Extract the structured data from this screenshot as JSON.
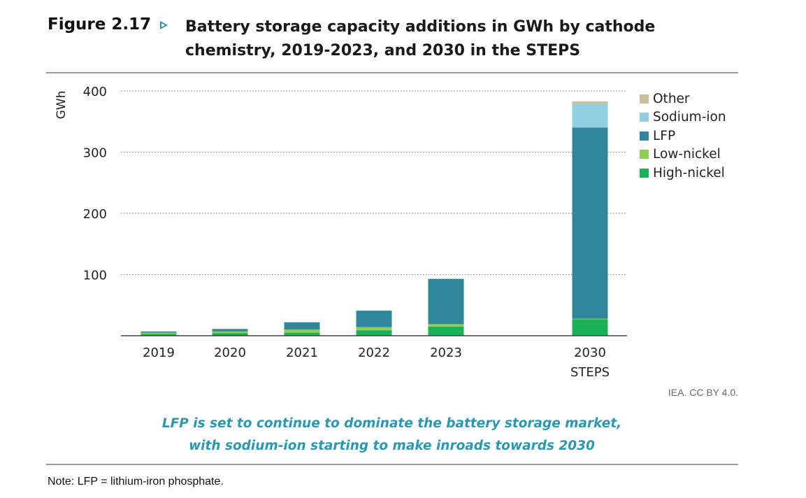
{
  "header": {
    "figure_label": "Figure 2.17",
    "title_line1": "Battery storage capacity additions in GWh by cathode",
    "title_line2": "chemistry, 2019-2023, and 2030 in the STEPS"
  },
  "source": "IEA. CC BY 4.0.",
  "subtitle_line1": "LFP is set to continue to dominate the battery storage market,",
  "subtitle_line2": "with sodium-ion starting to make inroads towards 2030",
  "note": "Note: LFP = lithium-iron phosphate.",
  "chart_data": {
    "type": "bar",
    "stacked": true,
    "title": "Battery storage capacity additions in GWh by cathode chemistry, 2019-2023, and 2030 in the STEPS",
    "ylabel": "GWh",
    "ylim": [
      0,
      400
    ],
    "yticks": [
      100,
      200,
      300,
      400
    ],
    "grid": "horizontal dotted",
    "legend_position": "top-right",
    "categories": [
      {
        "line1": "2019",
        "line2": ""
      },
      {
        "line1": "2020",
        "line2": ""
      },
      {
        "line1": "2021",
        "line2": ""
      },
      {
        "line1": "2022",
        "line2": ""
      },
      {
        "line1": "2023",
        "line2": ""
      },
      {
        "line1": "2030",
        "line2": "STEPS"
      }
    ],
    "series": [
      {
        "name": "High-nickel",
        "color": "#1bb157",
        "values": [
          3,
          4,
          5,
          9,
          15,
          27
        ]
      },
      {
        "name": "Low-nickel",
        "color": "#8fcf4f",
        "values": [
          2,
          3,
          5,
          5,
          4,
          1
        ]
      },
      {
        "name": "LFP",
        "color": "#2f8799",
        "values": [
          2,
          4,
          12,
          27,
          74,
          312
        ]
      },
      {
        "name": "Sodium-ion",
        "color": "#90cfdf",
        "values": [
          0,
          0,
          0,
          0,
          0,
          39
        ]
      },
      {
        "name": "Other",
        "color": "#c8bf9b",
        "values": [
          0,
          0,
          0,
          0,
          0,
          4
        ]
      }
    ],
    "legend_order": [
      "Other",
      "Sodium-ion",
      "LFP",
      "Low-nickel",
      "High-nickel"
    ]
  }
}
